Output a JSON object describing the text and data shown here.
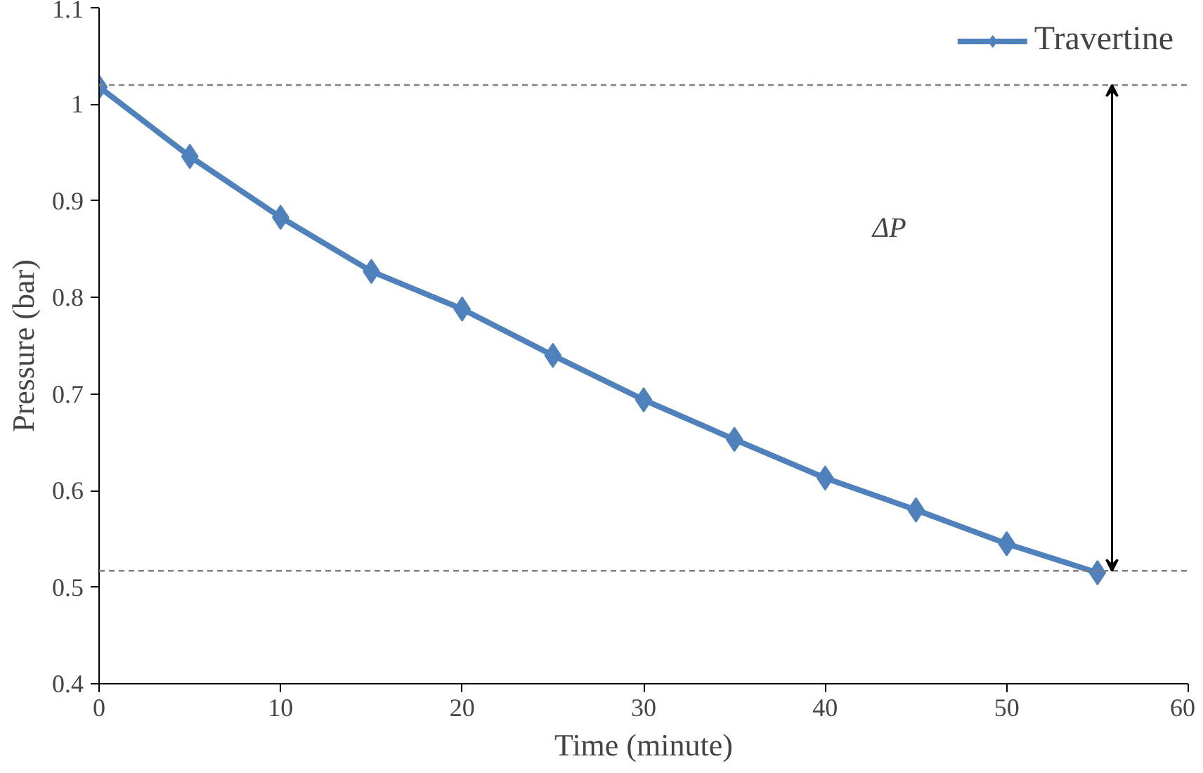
{
  "chart_data": {
    "type": "line",
    "xlabel": "Time (minute)",
    "ylabel": "Pressure (bar)",
    "x": [
      0,
      5,
      10,
      15,
      20,
      25,
      30,
      35,
      40,
      45,
      50,
      55
    ],
    "series": [
      {
        "name": "Travertine",
        "color": "#4f81bd",
        "values": [
          1.018,
          0.946,
          0.883,
          0.827,
          0.788,
          0.74,
          0.694,
          0.653,
          0.613,
          0.58,
          0.545,
          0.515
        ]
      }
    ],
    "xlim": [
      0,
      60
    ],
    "xticks": [
      0,
      10,
      20,
      30,
      40,
      50,
      60
    ],
    "ylim": [
      0.4,
      1.1
    ],
    "yticks": [
      0.4,
      0.5,
      0.6,
      0.7,
      0.8,
      0.9,
      1,
      1.1
    ],
    "ref_lines": [
      {
        "axis": "y",
        "value": 1.02,
        "color": "#808080",
        "line_style": "dashed"
      },
      {
        "axis": "y",
        "value": 0.517,
        "color": "#808080",
        "line_style": "dashed"
      }
    ],
    "annotations": [
      "ΔP"
    ],
    "grid": false,
    "legend": "top right",
    "marker": "diamond",
    "line_style": "solid"
  }
}
